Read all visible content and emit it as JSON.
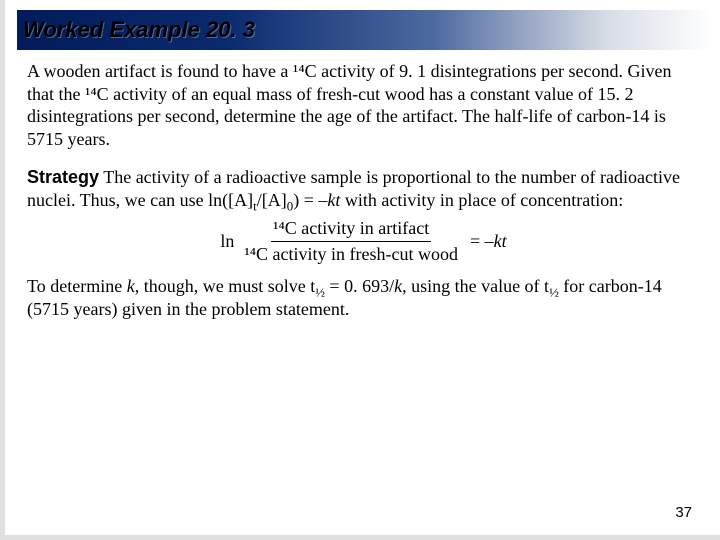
{
  "title": "Worked Example 20. 3",
  "problem": "A wooden artifact is found to have a ¹⁴C activity of 9. 1 disintegrations per second. Given that the ¹⁴C activity of an equal mass of fresh-cut wood has a constant value of 15. 2 disintegrations per second, determine the age of the artifact. The half-life of carbon-14 is 5715 years.",
  "strategy_label": "Strategy",
  "strategy_text_1": " The activity of a radioactive sample is proportional to the number of radioactive nuclei. Thus, we can use ln([A]",
  "strategy_sub_t": "t",
  "strategy_text_2": "/[A]",
  "strategy_sub_0": "0",
  "strategy_text_3": ") = –",
  "strategy_kt": "kt",
  "strategy_text_4": " with activity in place of concentration:",
  "equation": {
    "ln": "ln",
    "numerator": "¹⁴C activity in artifact",
    "denominator": "¹⁴C activity in fresh-cut wood",
    "rhs_eq": " = –",
    "rhs_kt": "kt"
  },
  "followup_1": "To determine ",
  "followup_k": "k",
  "followup_2": ", though, we must solve t",
  "followup_half": "½",
  "followup_3": " = 0. 693/",
  "followup_k2": "k",
  "followup_4": ", using the value of t",
  "followup_half2": "½",
  "followup_5": " for carbon-14 (5715 years) given in the problem statement.",
  "page_number": "37",
  "style": {
    "slide_width": 720,
    "slide_height": 540,
    "title_gradient_start": "#021b5a",
    "title_gradient_end": "#ffffff",
    "title_font": "Arial",
    "title_font_size": 22,
    "title_italic": true,
    "title_bold": true,
    "body_font": "Times New Roman",
    "body_font_size": 18,
    "body_color": "#000000",
    "strategy_label_font": "Arial",
    "strategy_label_bold": true,
    "page_number_font": "Arial",
    "page_number_size": 15,
    "border_color": "#e0e0e0",
    "border_width": 5
  }
}
